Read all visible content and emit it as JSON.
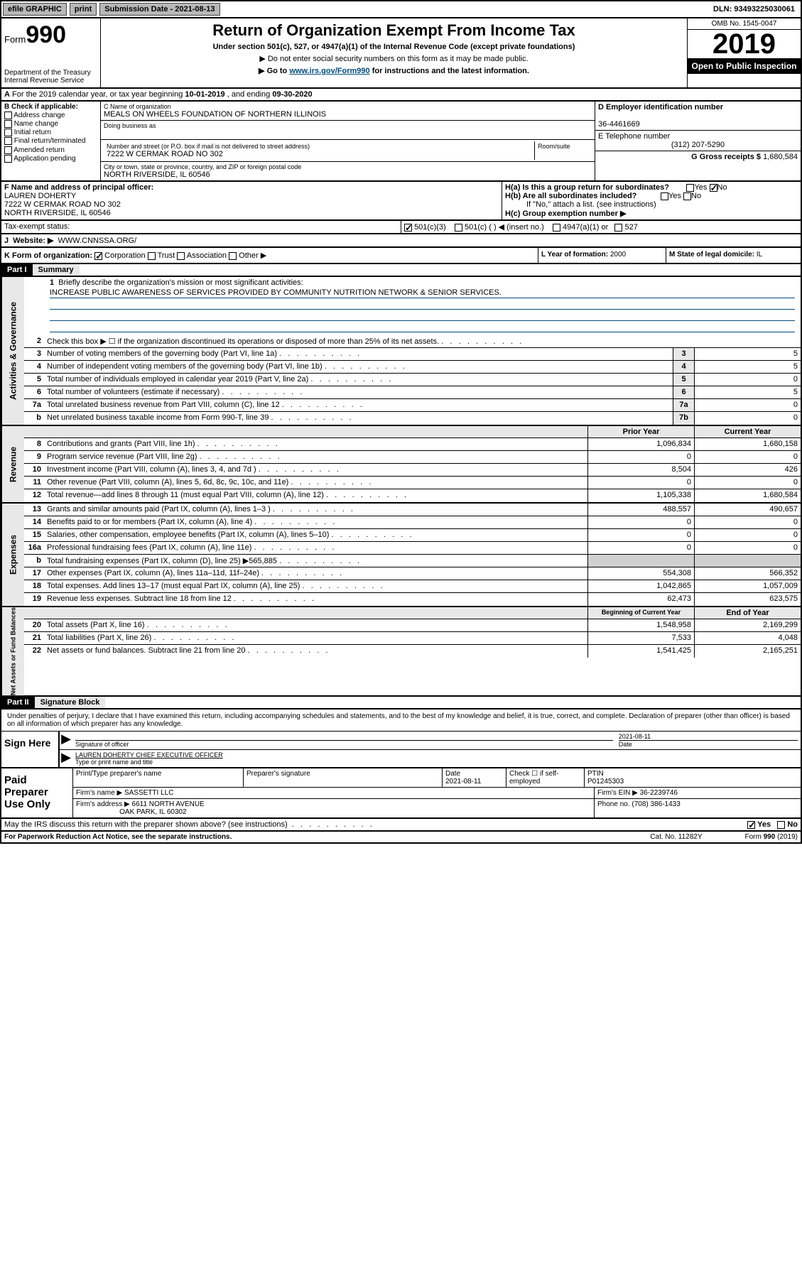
{
  "top_bar": {
    "efile": "efile GRAPHIC",
    "print": "print",
    "sub_date_label": "Submission Date - 2021-08-13",
    "dln": "DLN: 93493225030061"
  },
  "header": {
    "form_prefix": "Form",
    "form_number": "990",
    "dept": "Department of the Treasury\nInternal Revenue Service",
    "title": "Return of Organization Exempt From Income Tax",
    "subtitle": "Under section 501(c), 527, or 4947(a)(1) of the Internal Revenue Code (except private foundations)",
    "note1": "▶ Do not enter social security numbers on this form as it may be made public.",
    "note2_pre": "▶ Go to ",
    "note2_link": "www.irs.gov/Form990",
    "note2_post": " for instructions and the latest information.",
    "omb": "OMB No. 1545-0047",
    "year": "2019",
    "open": "Open to Public Inspection"
  },
  "row_a": {
    "text_pre": "For the 2019 calendar year, or tax year beginning ",
    "begin": "10-01-2019",
    "mid": " , and ending ",
    "end": "09-30-2020"
  },
  "box_b": {
    "label": "B Check if applicable:",
    "items": [
      "Address change",
      "Name change",
      "Initial return",
      "Final return/terminated",
      "Amended return",
      "Application pending"
    ]
  },
  "box_c": {
    "name_label": "C Name of organization",
    "name": "MEALS ON WHEELS FOUNDATION OF NORTHERN ILLINOIS",
    "dba_label": "Doing business as",
    "addr_label": "Number and street (or P.O. box if mail is not delivered to street address)",
    "room_label": "Room/suite",
    "addr": "7222 W CERMAK ROAD NO 302",
    "city_label": "City or town, state or province, country, and ZIP or foreign postal code",
    "city": "NORTH RIVERSIDE, IL  60546"
  },
  "box_d": {
    "label": "D Employer identification number",
    "value": "36-4461669"
  },
  "box_e": {
    "label": "E Telephone number",
    "value": "(312) 207-5290"
  },
  "box_g": {
    "label": "G Gross receipts $",
    "value": "1,680,584"
  },
  "box_f": {
    "label": "F Name and address of principal officer:",
    "name": "LAUREN DOHERTY",
    "addr1": "7222 W CERMAK ROAD NO 302",
    "addr2": "NORTH RIVERSIDE, IL  60546"
  },
  "box_h": {
    "ha": "H(a)  Is this a group return for subordinates?",
    "ha_no_checked": true,
    "hb": "H(b)  Are all subordinates included?",
    "hb_note": "If \"No,\" attach a list. (see instructions)",
    "hc": "H(c)  Group exemption number ▶"
  },
  "row_i": {
    "label": "Tax-exempt status:",
    "c3": "501(c)(3)",
    "c": "501(c) (  ) ◀ (insert no.)",
    "a1": "4947(a)(1) or",
    "s527": "527"
  },
  "row_j": {
    "label": "J",
    "text": "Website: ▶",
    "value": "WWW.CNNSSA.ORG/"
  },
  "row_k": {
    "label": "K Form of organization:",
    "corp": "Corporation",
    "trust": "Trust",
    "assoc": "Association",
    "other": "Other ▶"
  },
  "row_l": {
    "label": "L Year of formation:",
    "value": "2000"
  },
  "row_m": {
    "label": "M State of legal domicile:",
    "value": "IL"
  },
  "part1": {
    "label": "Part I",
    "title": "Summary"
  },
  "mission": {
    "num": "1",
    "label": "Briefly describe the organization's mission or most significant activities:",
    "text": "INCREASE PUBLIC AWARENESS OF SERVICES PROVIDED BY COMMUNITY NUTRITION NETWORK & SENIOR SERVICES."
  },
  "gov_lines": [
    {
      "num": "2",
      "desc": "Check this box ▶ ☐  if the organization discontinued its operations or disposed of more than 25% of its net assets.",
      "box": "",
      "val": ""
    },
    {
      "num": "3",
      "desc": "Number of voting members of the governing body (Part VI, line 1a)",
      "box": "3",
      "val": "5"
    },
    {
      "num": "4",
      "desc": "Number of independent voting members of the governing body (Part VI, line 1b)",
      "box": "4",
      "val": "5"
    },
    {
      "num": "5",
      "desc": "Total number of individuals employed in calendar year 2019 (Part V, line 2a)",
      "box": "5",
      "val": "0"
    },
    {
      "num": "6",
      "desc": "Total number of volunteers (estimate if necessary)",
      "box": "6",
      "val": "5"
    },
    {
      "num": "7a",
      "desc": "Total unrelated business revenue from Part VIII, column (C), line 12",
      "box": "7a",
      "val": "0"
    },
    {
      "num": "b",
      "desc": "Net unrelated business taxable income from Form 990-T, line 39",
      "box": "7b",
      "val": "0"
    }
  ],
  "rev_hdr": {
    "prior": "Prior Year",
    "current": "Current Year"
  },
  "rev_lines": [
    {
      "num": "8",
      "desc": "Contributions and grants (Part VIII, line 1h)",
      "prior": "1,096,834",
      "curr": "1,680,158"
    },
    {
      "num": "9",
      "desc": "Program service revenue (Part VIII, line 2g)",
      "prior": "0",
      "curr": "0"
    },
    {
      "num": "10",
      "desc": "Investment income (Part VIII, column (A), lines 3, 4, and 7d )",
      "prior": "8,504",
      "curr": "426"
    },
    {
      "num": "11",
      "desc": "Other revenue (Part VIII, column (A), lines 5, 6d, 8c, 9c, 10c, and 11e)",
      "prior": "0",
      "curr": "0"
    },
    {
      "num": "12",
      "desc": "Total revenue—add lines 8 through 11 (must equal Part VIII, column (A), line 12)",
      "prior": "1,105,338",
      "curr": "1,680,584"
    }
  ],
  "exp_lines": [
    {
      "num": "13",
      "desc": "Grants and similar amounts paid (Part IX, column (A), lines 1–3 )",
      "prior": "488,557",
      "curr": "490,657"
    },
    {
      "num": "14",
      "desc": "Benefits paid to or for members (Part IX, column (A), line 4)",
      "prior": "0",
      "curr": "0"
    },
    {
      "num": "15",
      "desc": "Salaries, other compensation, employee benefits (Part IX, column (A), lines 5–10)",
      "prior": "0",
      "curr": "0"
    },
    {
      "num": "16a",
      "desc": "Professional fundraising fees (Part IX, column (A), line 11e)",
      "prior": "0",
      "curr": "0"
    },
    {
      "num": "b",
      "desc": "Total fundraising expenses (Part IX, column (D), line 25) ▶565,885",
      "prior": "",
      "curr": "",
      "shaded": true
    },
    {
      "num": "17",
      "desc": "Other expenses (Part IX, column (A), lines 11a–11d, 11f–24e)",
      "prior": "554,308",
      "curr": "566,352"
    },
    {
      "num": "18",
      "desc": "Total expenses. Add lines 13–17 (must equal Part IX, column (A), line 25)",
      "prior": "1,042,865",
      "curr": "1,057,009"
    },
    {
      "num": "19",
      "desc": "Revenue less expenses. Subtract line 18 from line 12",
      "prior": "62,473",
      "curr": "623,575"
    }
  ],
  "net_hdr": {
    "prior": "Beginning of Current Year",
    "current": "End of Year"
  },
  "net_lines": [
    {
      "num": "20",
      "desc": "Total assets (Part X, line 16)",
      "prior": "1,548,958",
      "curr": "2,169,299"
    },
    {
      "num": "21",
      "desc": "Total liabilities (Part X, line 26)",
      "prior": "7,533",
      "curr": "4,048"
    },
    {
      "num": "22",
      "desc": "Net assets or fund balances. Subtract line 21 from line 20",
      "prior": "1,541,425",
      "curr": "2,165,251"
    }
  ],
  "part2": {
    "label": "Part II",
    "title": "Signature Block"
  },
  "sig": {
    "decl": "Under penalties of perjury, I declare that I have examined this return, including accompanying schedules and statements, and to the best of my knowledge and belief, it is true, correct, and complete. Declaration of preparer (other than officer) is based on all information of which preparer has any knowledge.",
    "sign_here": "Sign Here",
    "sig_label": "Signature of officer",
    "date": "2021-08-11",
    "date_label": "Date",
    "name": "LAUREN DOHERTY CHIEF EXECUTIVE OFFICER",
    "name_label": "Type or print name and title"
  },
  "prep": {
    "label": "Paid Preparer Use Only",
    "col1": "Print/Type preparer's name",
    "col2": "Preparer's signature",
    "col3": "Date",
    "col3v": "2021-08-11",
    "col4": "Check ☐ if self-employed",
    "col5": "PTIN",
    "col5v": "P01245303",
    "firm_label": "Firm's name    ▶",
    "firm": "SASSETTI LLC",
    "ein_label": "Firm's EIN ▶",
    "ein": "36-2239746",
    "addr_label": "Firm's address ▶",
    "addr": "6611 NORTH AVENUE",
    "addr2": "OAK PARK, IL  60302",
    "phone_label": "Phone no.",
    "phone": "(708) 386-1433"
  },
  "discuss": {
    "text": "May the IRS discuss this return with the preparer shown above? (see instructions)",
    "yes": "Yes",
    "no": "No"
  },
  "footer": {
    "left": "For Paperwork Reduction Act Notice, see the separate instructions.",
    "mid": "Cat. No. 11282Y",
    "right": "Form 990 (2019)"
  },
  "vtabs": {
    "gov": "Activities & Governance",
    "rev": "Revenue",
    "exp": "Expenses",
    "net": "Net Assets or Fund Balances"
  }
}
